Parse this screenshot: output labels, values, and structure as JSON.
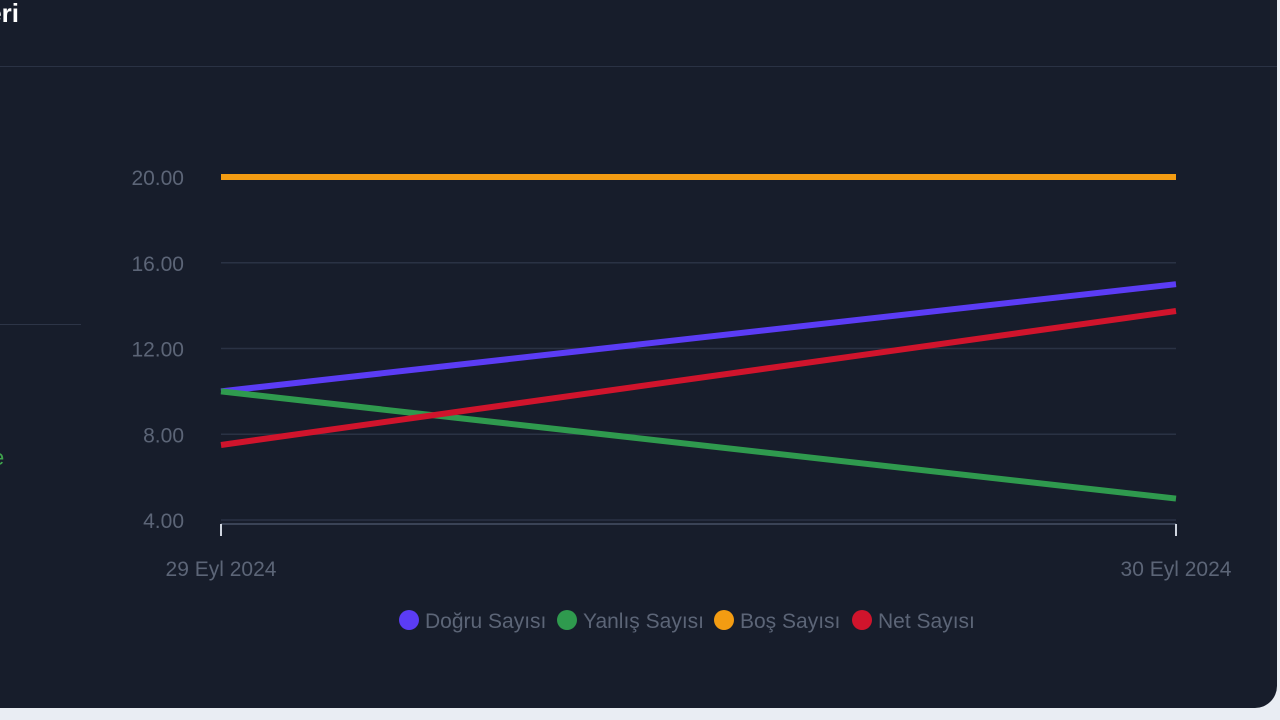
{
  "header": {
    "title": "leri"
  },
  "left_panel": {
    "fragment": "e"
  },
  "colors": {
    "card_background": "#171d2b",
    "page_background": "#e9edf3",
    "grid": "#2a3244",
    "tick_text": "#5c6577"
  },
  "chart_data": {
    "type": "line",
    "x": [
      "29 Eyl 2024",
      "30 Eyl 2024"
    ],
    "y_ticks": [
      "4.00",
      "8.00",
      "12.00",
      "16.00",
      "20.00"
    ],
    "ylim": [
      4,
      20
    ],
    "grid": true,
    "legend_position": "bottom",
    "series": [
      {
        "name": "Doğru Sayısı",
        "color": "#5b3cf5",
        "values": [
          10,
          15
        ]
      },
      {
        "name": "Yanlış Sayısı",
        "color": "#2f9a4e",
        "values": [
          10,
          5
        ]
      },
      {
        "name": "Boş Sayısı",
        "color": "#f39c12",
        "values": [
          20,
          20
        ]
      },
      {
        "name": "Net Sayısı",
        "color": "#d0142c",
        "values": [
          7.5,
          13.75
        ]
      }
    ]
  }
}
